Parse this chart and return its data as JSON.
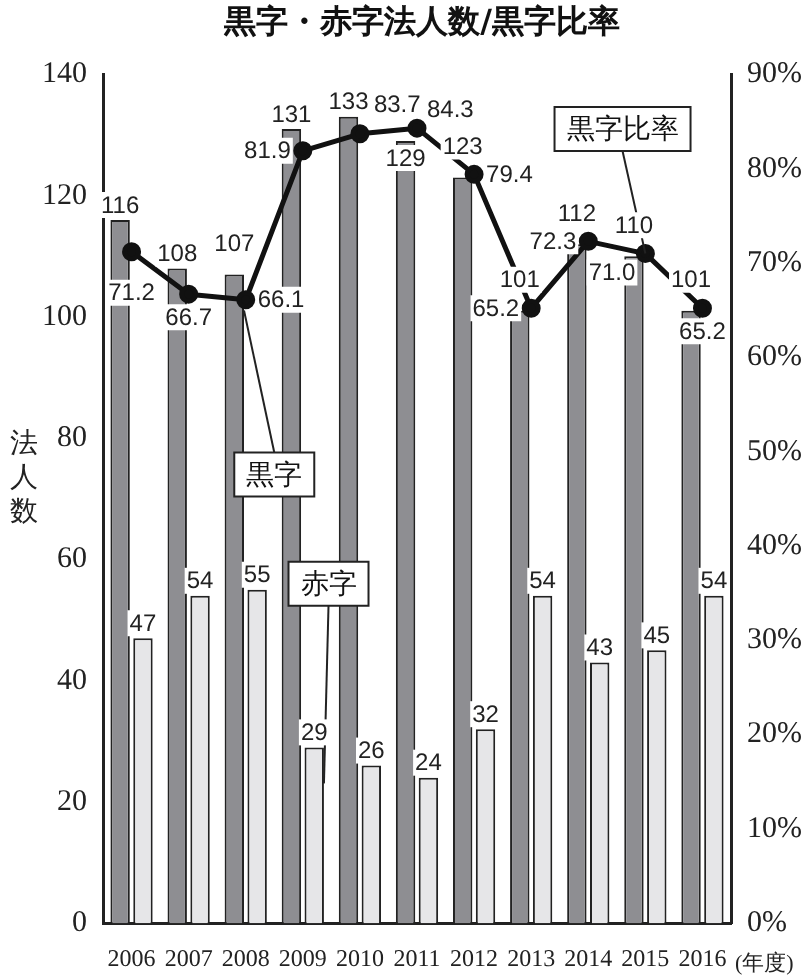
{
  "chart_data": {
    "type": "bar",
    "title": "黒字・赤字法人数/黒字比率",
    "xlabel": "(年度)",
    "ylabel": "法人数",
    "categories": [
      "2006",
      "2007",
      "2008",
      "2009",
      "2010",
      "2011",
      "2012",
      "2013",
      "2014",
      "2015",
      "2016"
    ],
    "series": [
      {
        "name": "黒字",
        "color": "#8e8e92",
        "values": [
          116,
          108,
          107,
          131,
          133,
          129,
          123,
          101,
          112,
          110,
          101
        ]
      },
      {
        "name": "赤字",
        "color": "#e6e6e8",
        "values": [
          47,
          54,
          55,
          29,
          26,
          24,
          32,
          54,
          43,
          45,
          54
        ]
      },
      {
        "name": "黒字比率",
        "type": "line",
        "axis": "y2",
        "color": "#111111",
        "values": [
          71.2,
          66.7,
          66.1,
          81.9,
          83.7,
          84.3,
          79.4,
          65.2,
          72.3,
          71.0,
          65.2
        ],
        "value_labels": [
          "71.2",
          "66.7",
          "66.1",
          "81.9",
          "83.7",
          "84.3",
          "79.4",
          "65.2",
          "72.3",
          "71.0",
          "65.2"
        ]
      }
    ],
    "ylim": [
      0,
      140
    ],
    "yticks": [
      0,
      20,
      40,
      60,
      80,
      100,
      120,
      140
    ],
    "y2lim": [
      0,
      90
    ],
    "y2ticks": [
      {
        "value": 0,
        "label": "0%"
      },
      {
        "value": 10,
        "label": "10%"
      },
      {
        "value": 20,
        "label": "20%"
      },
      {
        "value": 30,
        "label": "30%"
      },
      {
        "value": 40,
        "label": "40%"
      },
      {
        "value": 50,
        "label": "50%"
      },
      {
        "value": 60,
        "label": "60%"
      },
      {
        "value": 70,
        "label": "70%"
      },
      {
        "value": 80,
        "label": "80%"
      },
      {
        "value": 90,
        "label": "90%"
      }
    ],
    "data_labels": true,
    "marker": "circle"
  }
}
